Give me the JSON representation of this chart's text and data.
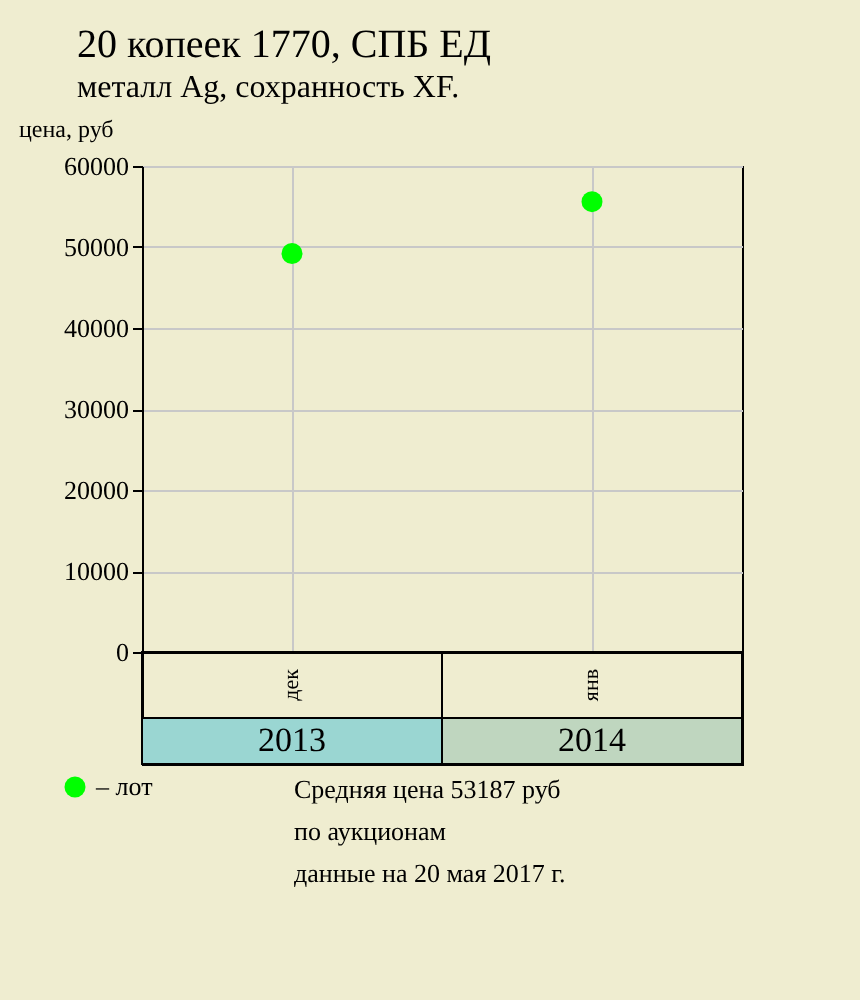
{
  "chart_data": {
    "type": "scatter",
    "title": "20 копеек 1770, СПБ ЕД",
    "subtitle": "металл Ag, сохранность XF.",
    "ylabel": "цена, руб",
    "categories": [
      "2013",
      "2014"
    ],
    "series": [
      {
        "name": "– лот",
        "color": "#00ff00",
        "values": [
          49200,
          55600
        ]
      }
    ],
    "ylim": [
      0,
      60000
    ],
    "yticks": [
      0,
      10000,
      20000,
      30000,
      40000,
      50000,
      60000
    ],
    "grid": true,
    "legend": "bottom left",
    "marker": "circle",
    "annotations": [
      "дек",
      "янв",
      "Средняя цена 53187 руб",
      "по аукционам",
      "данные на 20 мая 2017 г."
    ]
  }
}
